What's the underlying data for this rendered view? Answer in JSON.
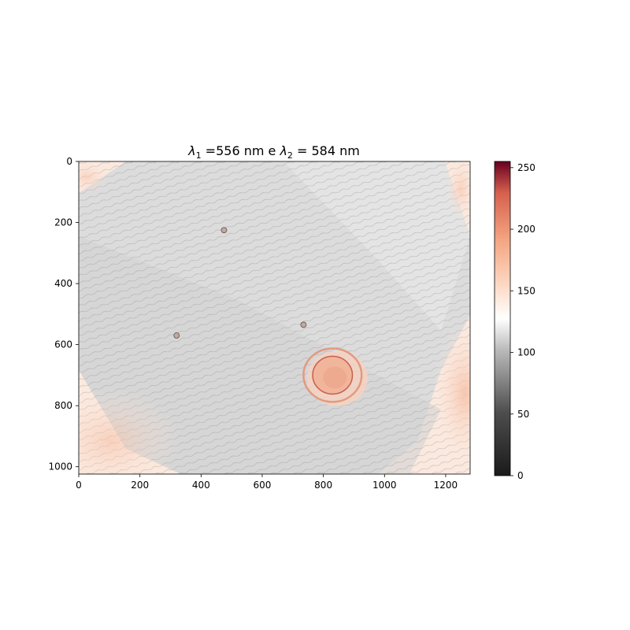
{
  "chart_data": {
    "type": "heatmap",
    "title_parts": {
      "symbol": "λ",
      "sub1": "1",
      "mid": " =556 nm e ",
      "sub2": "2",
      "end": " = 584 nm"
    },
    "xlim": [
      0,
      1280
    ],
    "ylim": [
      1024,
      0
    ],
    "x_ticks": [
      0,
      200,
      400,
      600,
      800,
      1000,
      1200
    ],
    "y_ticks": [
      0,
      200,
      400,
      600,
      800,
      1000
    ],
    "colormap": "RdGy_r",
    "colorbar": {
      "range": [
        0,
        255
      ],
      "ticks": [
        0,
        50,
        100,
        150,
        200,
        250
      ]
    },
    "features": [
      {
        "shape": "ring",
        "center": [
          830,
          700
        ],
        "radii": [
          65,
          95
        ]
      },
      {
        "shape": "spot",
        "center": [
          475,
          225
        ]
      },
      {
        "shape": "spot",
        "center": [
          735,
          535
        ]
      },
      {
        "shape": "spot",
        "center": [
          320,
          570
        ]
      }
    ]
  }
}
